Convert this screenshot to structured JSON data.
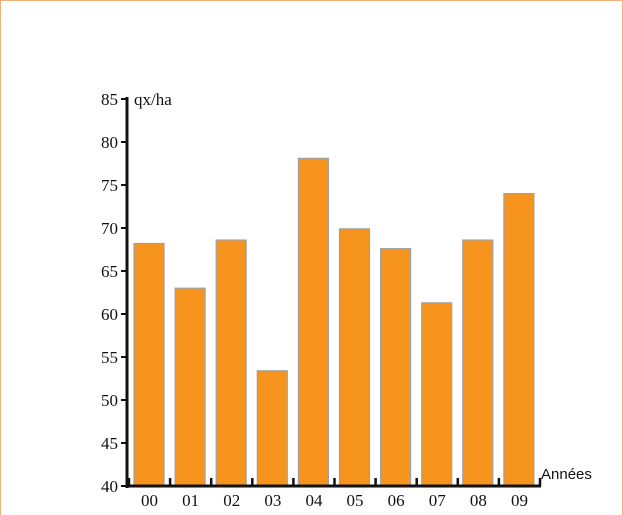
{
  "chart_data": {
    "type": "bar",
    "categories": [
      "00",
      "01",
      "02",
      "03",
      "04",
      "05",
      "06",
      "07",
      "08",
      "09"
    ],
    "values": [
      68.2,
      63.0,
      68.6,
      53.4,
      78.1,
      69.9,
      67.6,
      61.3,
      68.6,
      74.0
    ],
    "title": "",
    "xlabel": "Années",
    "ylabel": "qx/ha",
    "ylim": [
      40,
      85
    ],
    "yticks": [
      40,
      45,
      50,
      55,
      60,
      65,
      70,
      75,
      80,
      85
    ],
    "grid": false,
    "colors": {
      "bar": "#f7941d",
      "bar_edge": "#a0a0a0",
      "axis": "#111111",
      "frame": "#f0b27a"
    }
  }
}
